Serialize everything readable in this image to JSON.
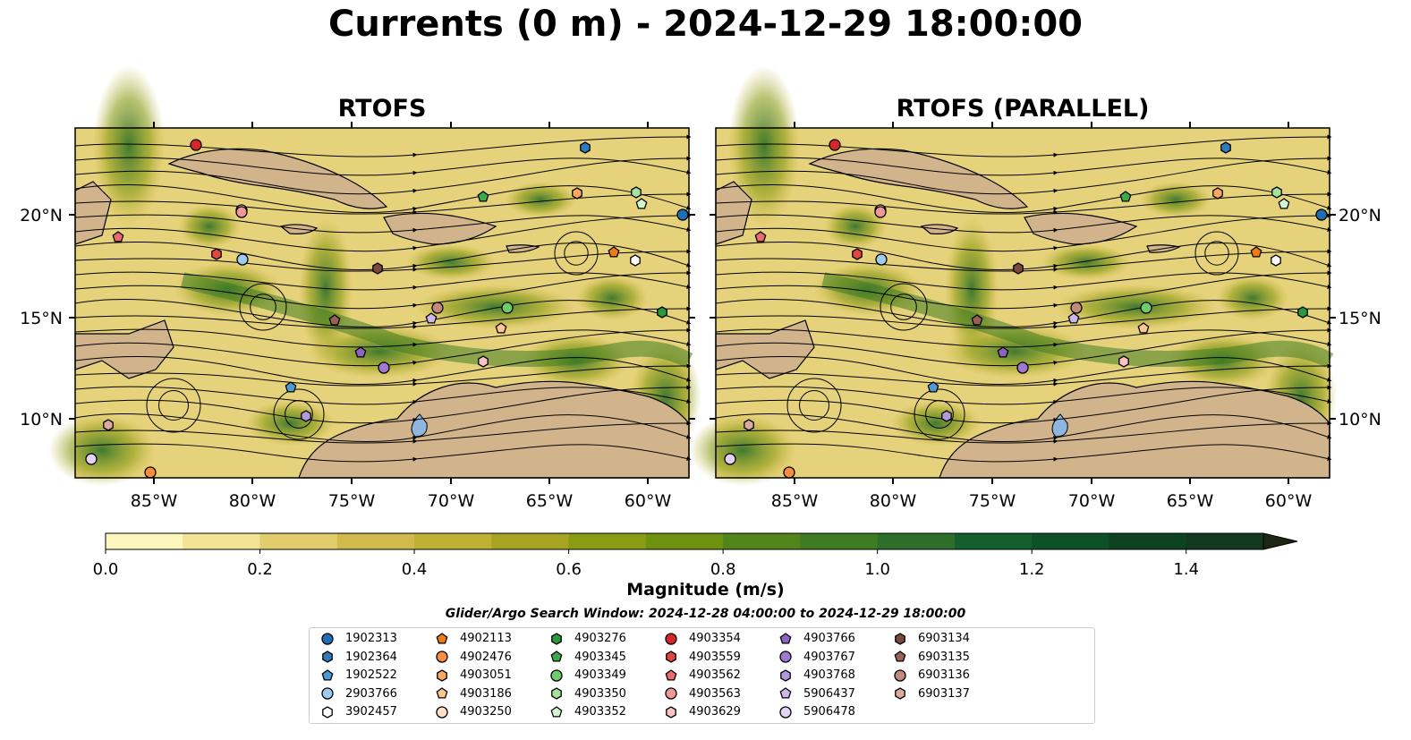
{
  "title": "Currents (0 m) - 2024-12-29 18:00:00",
  "panels": [
    {
      "title": "RTOFS"
    },
    {
      "title": "RTOFS (PARALLEL)"
    }
  ],
  "axes": {
    "lon_ticks": [
      "85°W",
      "80°W",
      "75°W",
      "70°W",
      "65°W",
      "60°W"
    ],
    "lat_ticks": [
      "20°N",
      "15°N",
      "10°N"
    ]
  },
  "colorbar": {
    "title": "Magnitude (m/s)",
    "ticks": [
      "0.0",
      "0.2",
      "0.4",
      "0.6",
      "0.8",
      "1.0",
      "1.2",
      "1.4"
    ],
    "range": [
      0,
      1.5
    ],
    "extend": "max",
    "colors": [
      "#fdf7bd",
      "#f1e294",
      "#e2cd6c",
      "#d1b94d",
      "#bfb036",
      "#a8a423",
      "#8a9b16",
      "#6e9210",
      "#528519",
      "#3f7b21",
      "#2d6f28",
      "#145f2d",
      "#0d5128",
      "#0e4322",
      "#12391e",
      "#172e19",
      "#1b2614"
    ]
  },
  "search_window": "Glider/Argo Search Window: 2024-12-28 04:00:00 to 2024-12-29 18:00:00",
  "legend": [
    {
      "id": "1902313",
      "marker": "circle",
      "color": "#1f6fb4"
    },
    {
      "id": "1902364",
      "marker": "hexagon",
      "color": "#2f7bbd"
    },
    {
      "id": "1902522",
      "marker": "pentagon",
      "color": "#4c9ad8"
    },
    {
      "id": "2903766",
      "marker": "circle",
      "color": "#9fcbf0"
    },
    {
      "id": "3902457",
      "marker": "hexagon",
      "color": "#ffffff"
    },
    {
      "id": "4902113",
      "marker": "pentagon",
      "color": "#f07d0e"
    },
    {
      "id": "4902476",
      "marker": "circle",
      "color": "#fb8d3c"
    },
    {
      "id": "4903051",
      "marker": "hexagon",
      "color": "#fca763"
    },
    {
      "id": "4903186",
      "marker": "pentagon",
      "color": "#fdc591"
    },
    {
      "id": "4903250",
      "marker": "circle",
      "color": "#fde0c5"
    },
    {
      "id": "4903276",
      "marker": "hexagon",
      "color": "#2a9a3a"
    },
    {
      "id": "4903345",
      "marker": "pentagon",
      "color": "#3caa46"
    },
    {
      "id": "4903349",
      "marker": "circle",
      "color": "#6fcc6a"
    },
    {
      "id": "4903350",
      "marker": "hexagon",
      "color": "#a4e39c"
    },
    {
      "id": "4903352",
      "marker": "pentagon",
      "color": "#d4f6d0"
    },
    {
      "id": "4903354",
      "marker": "circle",
      "color": "#d62728"
    },
    {
      "id": "4903559",
      "marker": "hexagon",
      "color": "#e0473f"
    },
    {
      "id": "4903562",
      "marker": "pentagon",
      "color": "#eb6d6b"
    },
    {
      "id": "4903563",
      "marker": "circle",
      "color": "#f29797"
    },
    {
      "id": "4903629",
      "marker": "hexagon",
      "color": "#f9c3c3"
    },
    {
      "id": "4903766",
      "marker": "pentagon",
      "color": "#8e63c0"
    },
    {
      "id": "4903767",
      "marker": "circle",
      "color": "#a07ad0"
    },
    {
      "id": "4903768",
      "marker": "hexagon",
      "color": "#b597dc"
    },
    {
      "id": "5906437",
      "marker": "pentagon",
      "color": "#cdb6ea"
    },
    {
      "id": "5906478",
      "marker": "circle",
      "color": "#e4d3f6"
    },
    {
      "id": "6903134",
      "marker": "hexagon",
      "color": "#7b4a3e"
    },
    {
      "id": "6903135",
      "marker": "pentagon",
      "color": "#996154"
    },
    {
      "id": "6903136",
      "marker": "circle",
      "color": "#c08a7c"
    },
    {
      "id": "6903137",
      "marker": "hexagon",
      "color": "#dcab9d"
    }
  ],
  "colors": {
    "land": "#d2b48c",
    "lake": "#8fb5e1",
    "river": "#a8c4e0"
  }
}
